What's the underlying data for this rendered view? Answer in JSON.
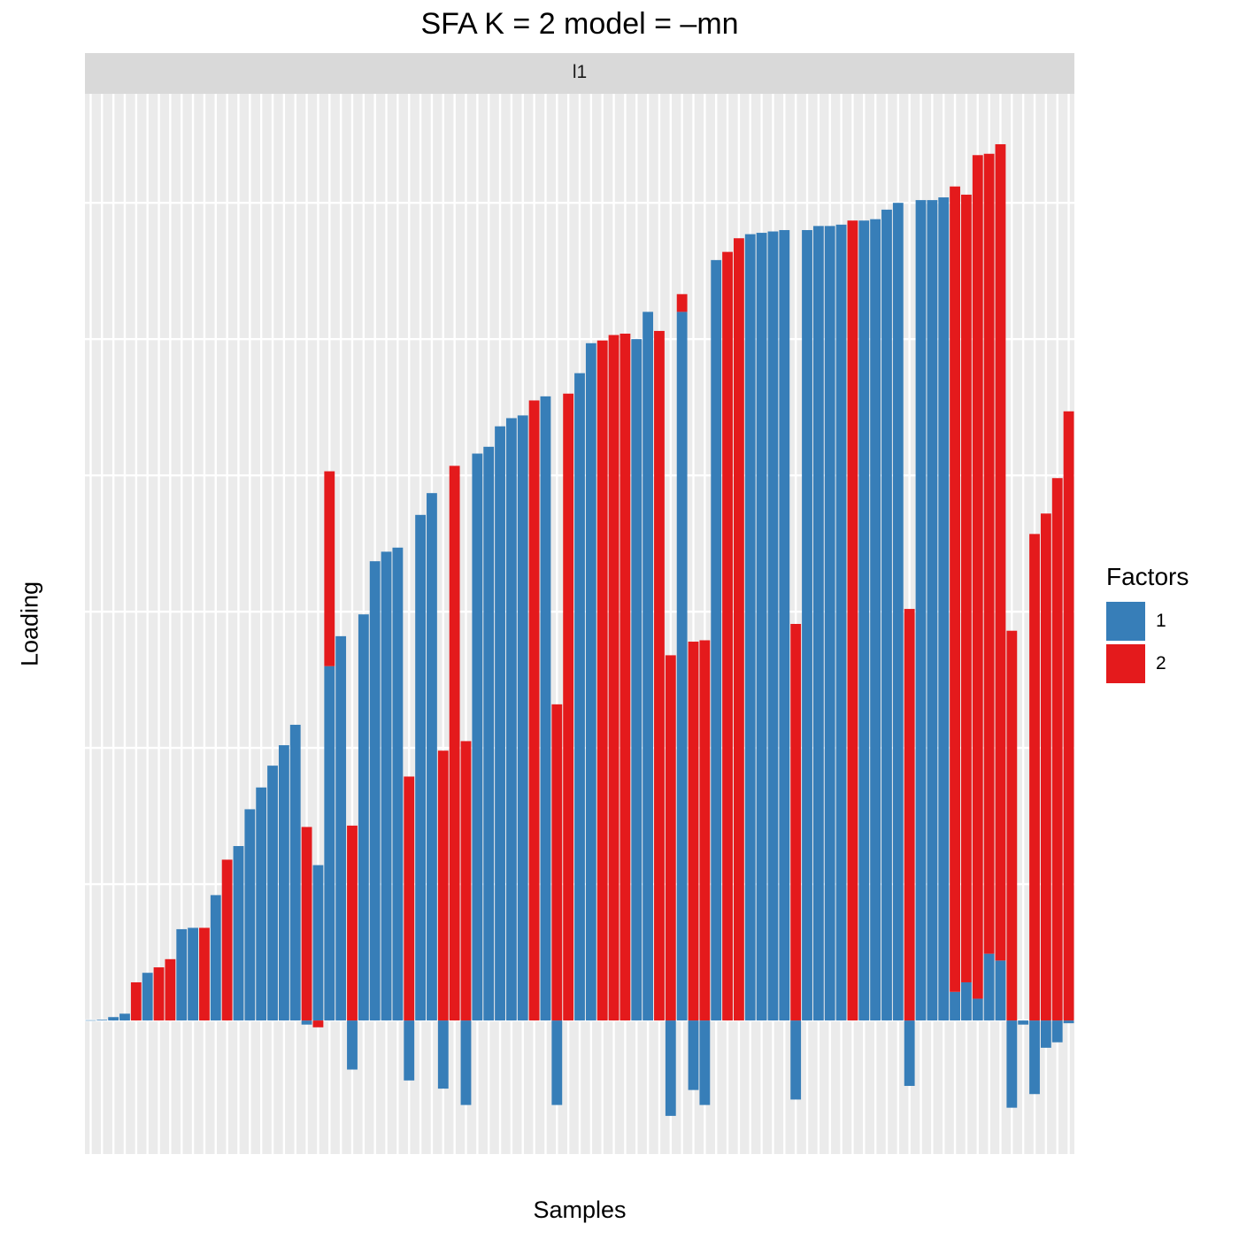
{
  "chart_data": {
    "type": "bar",
    "title": "SFA K = 2 model =  –mn",
    "facet_label": "l1",
    "xlabel": "Samples",
    "ylabel": "Loading",
    "stacked": true,
    "grid": true,
    "y_tick_labels_shown": false,
    "ylim": [
      -0.98,
      6.8
    ],
    "legend": {
      "title": "Factors",
      "position": "right"
    },
    "series": [
      {
        "name": "1",
        "color": "#377eb8",
        "values": [
          0.002,
          0.005,
          0.025,
          0.05,
          0,
          0.35,
          0,
          0,
          0.67,
          0.68,
          0,
          0.92,
          0,
          1.28,
          1.55,
          1.71,
          1.87,
          2.02,
          2.17,
          -0.03,
          1.14,
          2.6,
          2.82,
          -0.36,
          2.98,
          3.37,
          3.44,
          3.47,
          -0.44,
          3.71,
          3.87,
          -0.5,
          0,
          -0.62,
          4.16,
          4.21,
          4.36,
          4.42,
          4.44,
          0,
          4.58,
          -0.62,
          0,
          4.75,
          4.97,
          0,
          0,
          0,
          5.0,
          5.2,
          0,
          -0.7,
          5.2,
          -0.51,
          -0.62,
          5.58,
          0,
          0,
          5.77,
          5.78,
          5.79,
          5.8,
          -0.58,
          5.8,
          5.83,
          5.83,
          5.84,
          0,
          5.87,
          5.88,
          5.95,
          6.0,
          -0.48,
          6.02,
          6.02,
          6.04,
          0.21,
          0.28,
          0.16,
          0.49,
          0.44,
          -0.64,
          -0.03,
          -0.54,
          -0.2,
          -0.16,
          -0.02
        ]
      },
      {
        "name": "2",
        "color": "#e41a1c",
        "values": [
          0,
          0,
          0,
          0,
          0.28,
          0,
          0.39,
          0.45,
          0,
          0,
          0.68,
          0,
          1.18,
          0,
          0,
          0,
          0,
          0,
          0,
          1.42,
          -0.05,
          1.43,
          0,
          1.43,
          0,
          0,
          0,
          0,
          1.79,
          0,
          0,
          1.98,
          4.07,
          2.05,
          0,
          0,
          0,
          0,
          0,
          4.55,
          0,
          2.32,
          4.6,
          0,
          0,
          4.99,
          5.03,
          5.04,
          0,
          0,
          5.06,
          2.68,
          0.13,
          2.78,
          2.79,
          0,
          5.64,
          5.74,
          0,
          0,
          0,
          0,
          2.91,
          0,
          0,
          0,
          0,
          5.87,
          0,
          0,
          0,
          0,
          3.02,
          0,
          0,
          0,
          5.91,
          5.78,
          6.19,
          5.87,
          5.99,
          2.86,
          0,
          3.57,
          3.72,
          3.98,
          4.47
        ]
      }
    ]
  }
}
